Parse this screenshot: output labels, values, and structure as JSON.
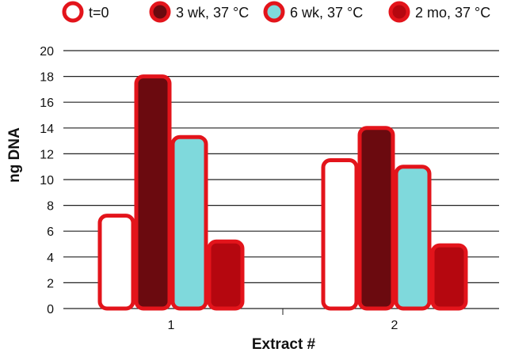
{
  "chart_data": {
    "type": "bar",
    "categories": [
      "1",
      "2"
    ],
    "series": [
      {
        "name": "t=0",
        "values": [
          7.2,
          11.5
        ],
        "fill": "#ffffff"
      },
      {
        "name": "3 wk, 37 °C",
        "values": [
          18.0,
          14.0
        ],
        "fill": "#6b0a0f"
      },
      {
        "name": "6 wk, 37 °C",
        "values": [
          13.3,
          11.0
        ],
        "fill": "#7fd9dc"
      },
      {
        "name": "2 mo, 37 °C",
        "values": [
          5.2,
          4.9
        ],
        "fill": "#b5070f"
      }
    ],
    "title": "",
    "xlabel": "Extract #",
    "ylabel": "ng DNA",
    "ylim": [
      0,
      20
    ],
    "yticks": [
      0,
      2,
      4,
      6,
      8,
      10,
      12,
      14,
      16,
      18,
      20
    ],
    "grid": true,
    "legend_position": "top",
    "border_color": "#e3141b"
  }
}
